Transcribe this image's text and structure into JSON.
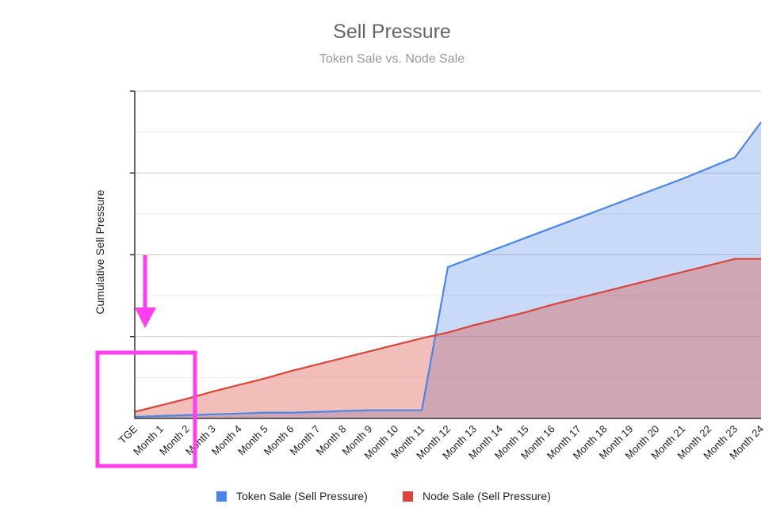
{
  "chart_data": {
    "type": "area",
    "title": "Sell Pressure",
    "subtitle": "Token Sale vs. Node Sale",
    "xlabel": "",
    "ylabel": "Cumulative Sell Pressure",
    "categories": [
      "TGE",
      "Month 1",
      "Month 2",
      "Month 3",
      "Month 4",
      "Month 5",
      "Month 6",
      "Month 7",
      "Month 8",
      "Month 9",
      "Month 10",
      "Month 11",
      "Month 12",
      "Month 13",
      "Month 14",
      "Month 15",
      "Month 16",
      "Month 17",
      "Month 18",
      "Month 19",
      "Month 20",
      "Month 21",
      "Month 22",
      "Month 23",
      "Month 24"
    ],
    "ylim": [
      0,
      4
    ],
    "grid": true,
    "legend_position": "bottom",
    "series": [
      {
        "name": "Token Sale (Sell Pressure)",
        "color": "#4a86e8",
        "values": [
          0.02,
          0.03,
          0.04,
          0.05,
          0.06,
          0.07,
          0.07,
          0.08,
          0.09,
          0.1,
          0.1,
          0.1,
          1.85,
          1.97,
          2.09,
          2.21,
          2.33,
          2.45,
          2.57,
          2.69,
          2.81,
          2.93,
          3.06,
          3.19,
          3.62
        ]
      },
      {
        "name": "Node Sale (Sell Pressure)",
        "color": "#db4437",
        "values": [
          0.08,
          0.16,
          0.24,
          0.33,
          0.41,
          0.49,
          0.58,
          0.66,
          0.74,
          0.82,
          0.9,
          0.98,
          1.05,
          1.14,
          1.22,
          1.3,
          1.39,
          1.47,
          1.55,
          1.63,
          1.71,
          1.79,
          1.87,
          1.95,
          1.95
        ]
      }
    ],
    "annotations": {
      "arrow_color": "#ff3ef0",
      "highlight_box_color": "#ff3ef0",
      "highlight_range": [
        "TGE",
        "Month 2"
      ]
    }
  }
}
